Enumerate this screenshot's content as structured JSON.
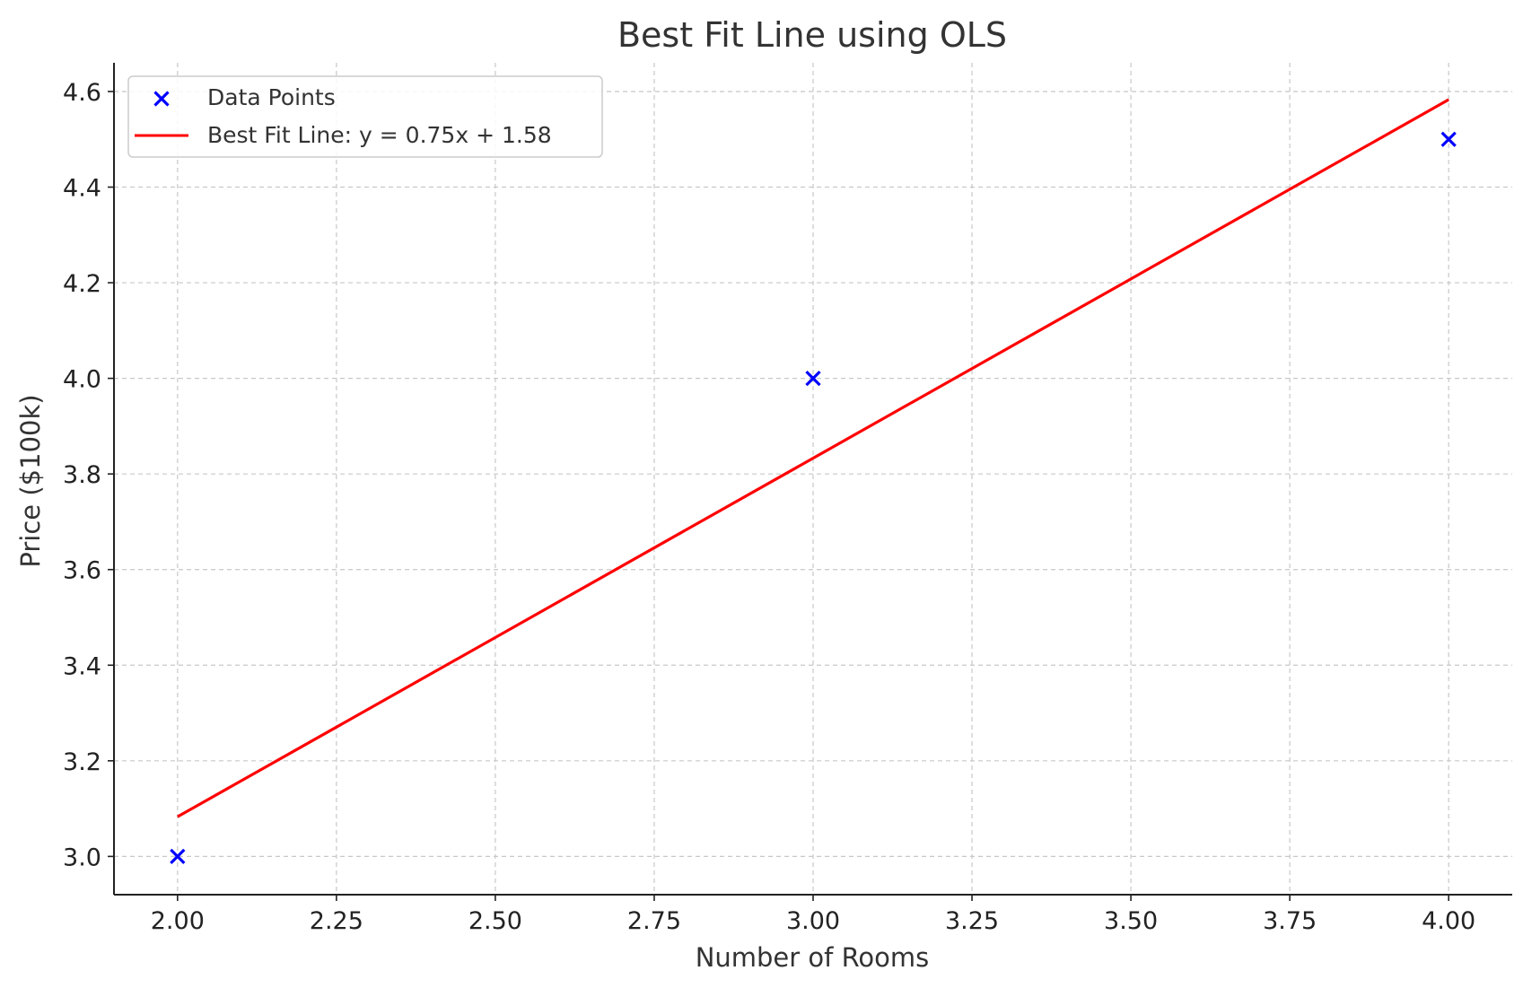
{
  "chart_data": {
    "type": "scatter",
    "title": "Best Fit Line using OLS",
    "xlabel": "Number of Rooms",
    "ylabel": "Price ($100k)",
    "xlim": [
      1.9,
      4.1
    ],
    "ylim": [
      2.92,
      4.66
    ],
    "x_ticks": [
      2.0,
      2.25,
      2.5,
      2.75,
      3.0,
      3.25,
      3.5,
      3.75,
      4.0
    ],
    "x_tick_labels": [
      "2.00",
      "2.25",
      "2.50",
      "2.75",
      "3.00",
      "3.25",
      "3.50",
      "3.75",
      "4.00"
    ],
    "y_ticks": [
      3.0,
      3.2,
      3.4,
      3.6,
      3.8,
      4.0,
      4.2,
      4.4,
      4.6
    ],
    "y_tick_labels": [
      "3.0",
      "3.2",
      "3.4",
      "3.6",
      "3.8",
      "4.0",
      "4.2",
      "4.4",
      "4.6"
    ],
    "grid": true,
    "legend_position": "top-left",
    "series": [
      {
        "name": "Data Points",
        "kind": "scatter",
        "marker": "x",
        "color": "#0000ff",
        "points": [
          {
            "x": 2.0,
            "y": 3.0
          },
          {
            "x": 3.0,
            "y": 4.0
          },
          {
            "x": 4.0,
            "y": 4.5
          }
        ]
      },
      {
        "name": "Best Fit Line: y = 0.75x + 1.58",
        "kind": "line",
        "color": "#ff0000",
        "points": [
          {
            "x": 2.0,
            "y": 3.083
          },
          {
            "x": 4.0,
            "y": 4.583
          }
        ]
      }
    ]
  }
}
